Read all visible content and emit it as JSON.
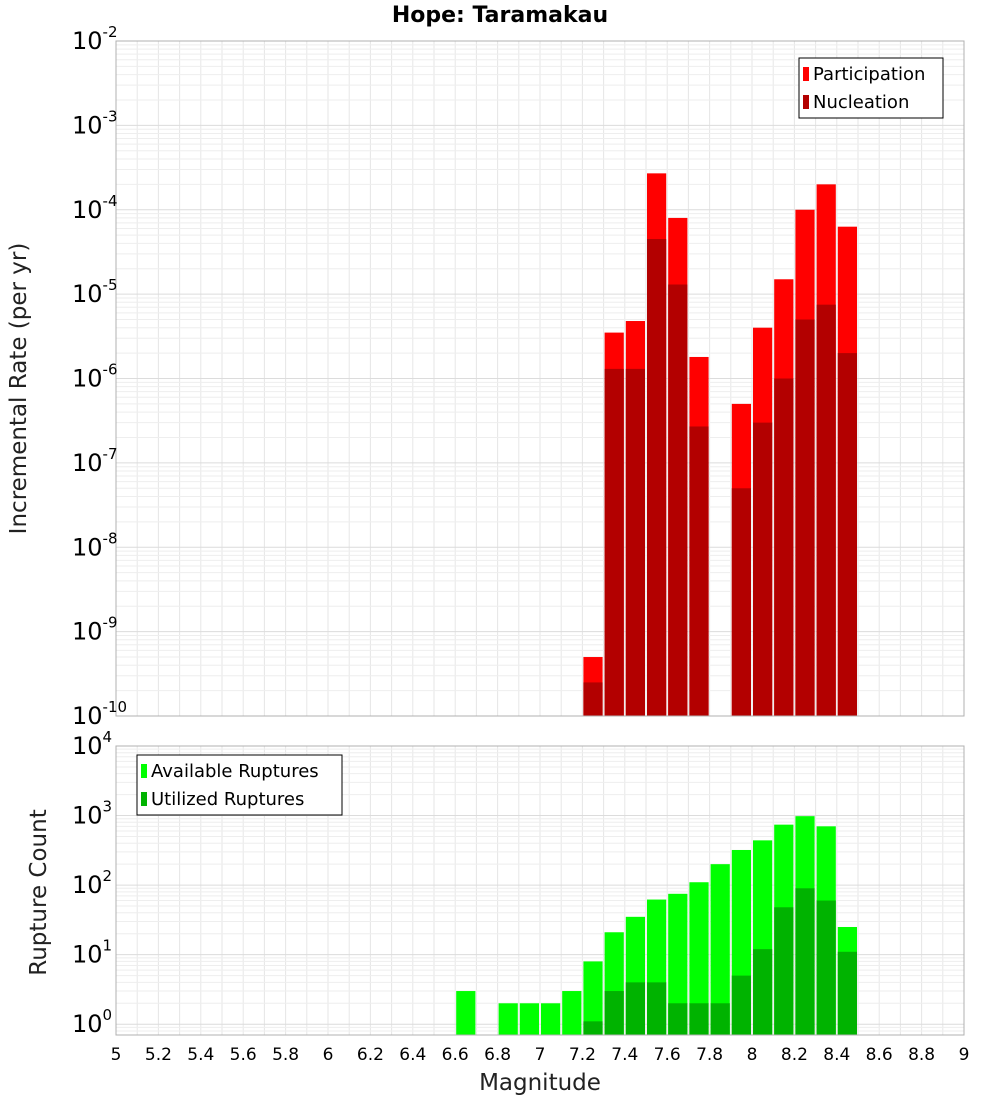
{
  "title": "Hope: Taramakau",
  "colors": {
    "participation": "#ff0000",
    "nucleation": "#b30000",
    "available": "#00ff00",
    "utilized": "#00b300",
    "grid": "#e6e6e6",
    "frame": "#b0b0b0"
  },
  "chart_data": [
    {
      "type": "bar",
      "panel": "top",
      "scale": "log",
      "title": "Hope: Taramakau",
      "xlabel": "Magnitude",
      "ylabel": "Incremental Rate (per yr)",
      "xlim": [
        5,
        9
      ],
      "ylim": [
        1e-10,
        0.01
      ],
      "y_decades": [
        {
          "base": "10",
          "exp": "-10",
          "value": 1e-10
        },
        {
          "base": "10",
          "exp": "-9",
          "value": 1e-09
        },
        {
          "base": "10",
          "exp": "-8",
          "value": 1e-08
        },
        {
          "base": "10",
          "exp": "-7",
          "value": 1e-07
        },
        {
          "base": "10",
          "exp": "-6",
          "value": 1e-06
        },
        {
          "base": "10",
          "exp": "-5",
          "value": 1e-05
        },
        {
          "base": "10",
          "exp": "-4",
          "value": 0.0001
        },
        {
          "base": "10",
          "exp": "-3",
          "value": 0.001
        },
        {
          "base": "10",
          "exp": "-2",
          "value": 0.01
        }
      ],
      "legend": [
        {
          "label": "Participation",
          "color_key": "participation"
        },
        {
          "label": "Nucleation",
          "color_key": "nucleation"
        }
      ],
      "legend_position": "top-right",
      "bin_width": 0.1,
      "x": [
        7.25,
        7.35,
        7.45,
        7.55,
        7.65,
        7.75,
        7.95,
        8.05,
        8.15,
        8.25,
        8.35,
        8.45
      ],
      "series": [
        {
          "name": "Participation",
          "values": [
            5e-10,
            3.5e-06,
            4.8e-06,
            0.00027,
            8e-05,
            1.8e-06,
            5e-07,
            4e-06,
            1.5e-05,
            0.0001,
            0.0002,
            6.3e-05
          ]
        },
        {
          "name": "Nucleation",
          "values": [
            2.5e-10,
            1.3e-06,
            1.3e-06,
            4.5e-05,
            1.3e-05,
            2.7e-07,
            5e-08,
            3e-07,
            1e-06,
            5e-06,
            7.5e-06,
            2e-06
          ]
        }
      ]
    },
    {
      "type": "bar",
      "panel": "bottom",
      "scale": "log",
      "xlabel": "Magnitude",
      "ylabel": "Rupture Count",
      "xlim": [
        5,
        9
      ],
      "ylim": [
        0.7,
        10000
      ],
      "x_ticks": [
        "5",
        "5.2",
        "5.4",
        "5.6",
        "5.8",
        "6",
        "6.2",
        "6.4",
        "6.6",
        "6.8",
        "7",
        "7.2",
        "7.4",
        "7.6",
        "7.8",
        "8",
        "8.2",
        "8.4",
        "8.6",
        "8.8",
        "9"
      ],
      "y_decades": [
        {
          "base": "10",
          "exp": "0",
          "value": 1
        },
        {
          "base": "10",
          "exp": "1",
          "value": 10
        },
        {
          "base": "10",
          "exp": "2",
          "value": 100
        },
        {
          "base": "10",
          "exp": "3",
          "value": 1000
        },
        {
          "base": "10",
          "exp": "4",
          "value": 10000
        }
      ],
      "legend": [
        {
          "label": "Available Ruptures",
          "color_key": "available"
        },
        {
          "label": "Utilized Ruptures",
          "color_key": "utilized"
        }
      ],
      "legend_position": "top-left",
      "bin_width": 0.1,
      "x": [
        6.65,
        6.85,
        6.95,
        7.05,
        7.15,
        7.25,
        7.35,
        7.45,
        7.55,
        7.65,
        7.75,
        7.85,
        7.95,
        8.05,
        8.15,
        8.25,
        8.35,
        8.45
      ],
      "series": [
        {
          "name": "Available Ruptures",
          "values": [
            3,
            2,
            2,
            2,
            3,
            8,
            21,
            35,
            62,
            75,
            110,
            200,
            320,
            440,
            740,
            980,
            700,
            25
          ]
        },
        {
          "name": "Utilized Ruptures",
          "values": [
            null,
            null,
            null,
            null,
            null,
            1.1,
            3,
            4,
            4,
            2,
            2,
            2,
            5,
            12,
            48,
            90,
            60,
            11
          ]
        }
      ]
    }
  ]
}
